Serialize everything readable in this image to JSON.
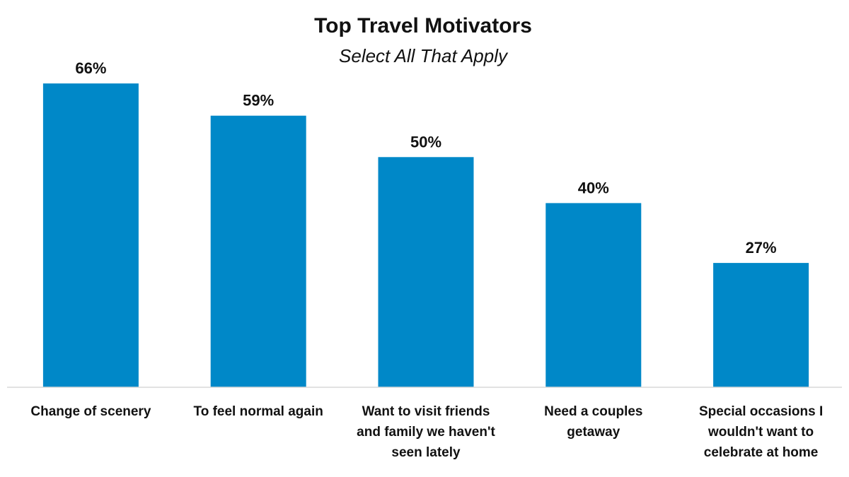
{
  "chart_data": {
    "type": "bar",
    "title": "Top Travel Motivators",
    "subtitle": "Select All That Apply",
    "categories": [
      [
        "Change of scenery"
      ],
      [
        "To feel normal again"
      ],
      [
        "Want to visit friends",
        "and family we haven't",
        "seen lately"
      ],
      [
        "Need a couples",
        "getaway"
      ],
      [
        "Special occasions I",
        "wouldn't want to",
        "celebrate at home"
      ]
    ],
    "values": [
      66,
      59,
      50,
      40,
      27
    ],
    "value_labels": [
      "66%",
      "59%",
      "50%",
      "40%",
      "27%"
    ],
    "unit": "%",
    "ylim": [
      0,
      70
    ],
    "grid": false,
    "legend": "none",
    "colors": {
      "bar": "#0088C8",
      "axis": "#D9D9D9",
      "text": "#111111"
    }
  }
}
